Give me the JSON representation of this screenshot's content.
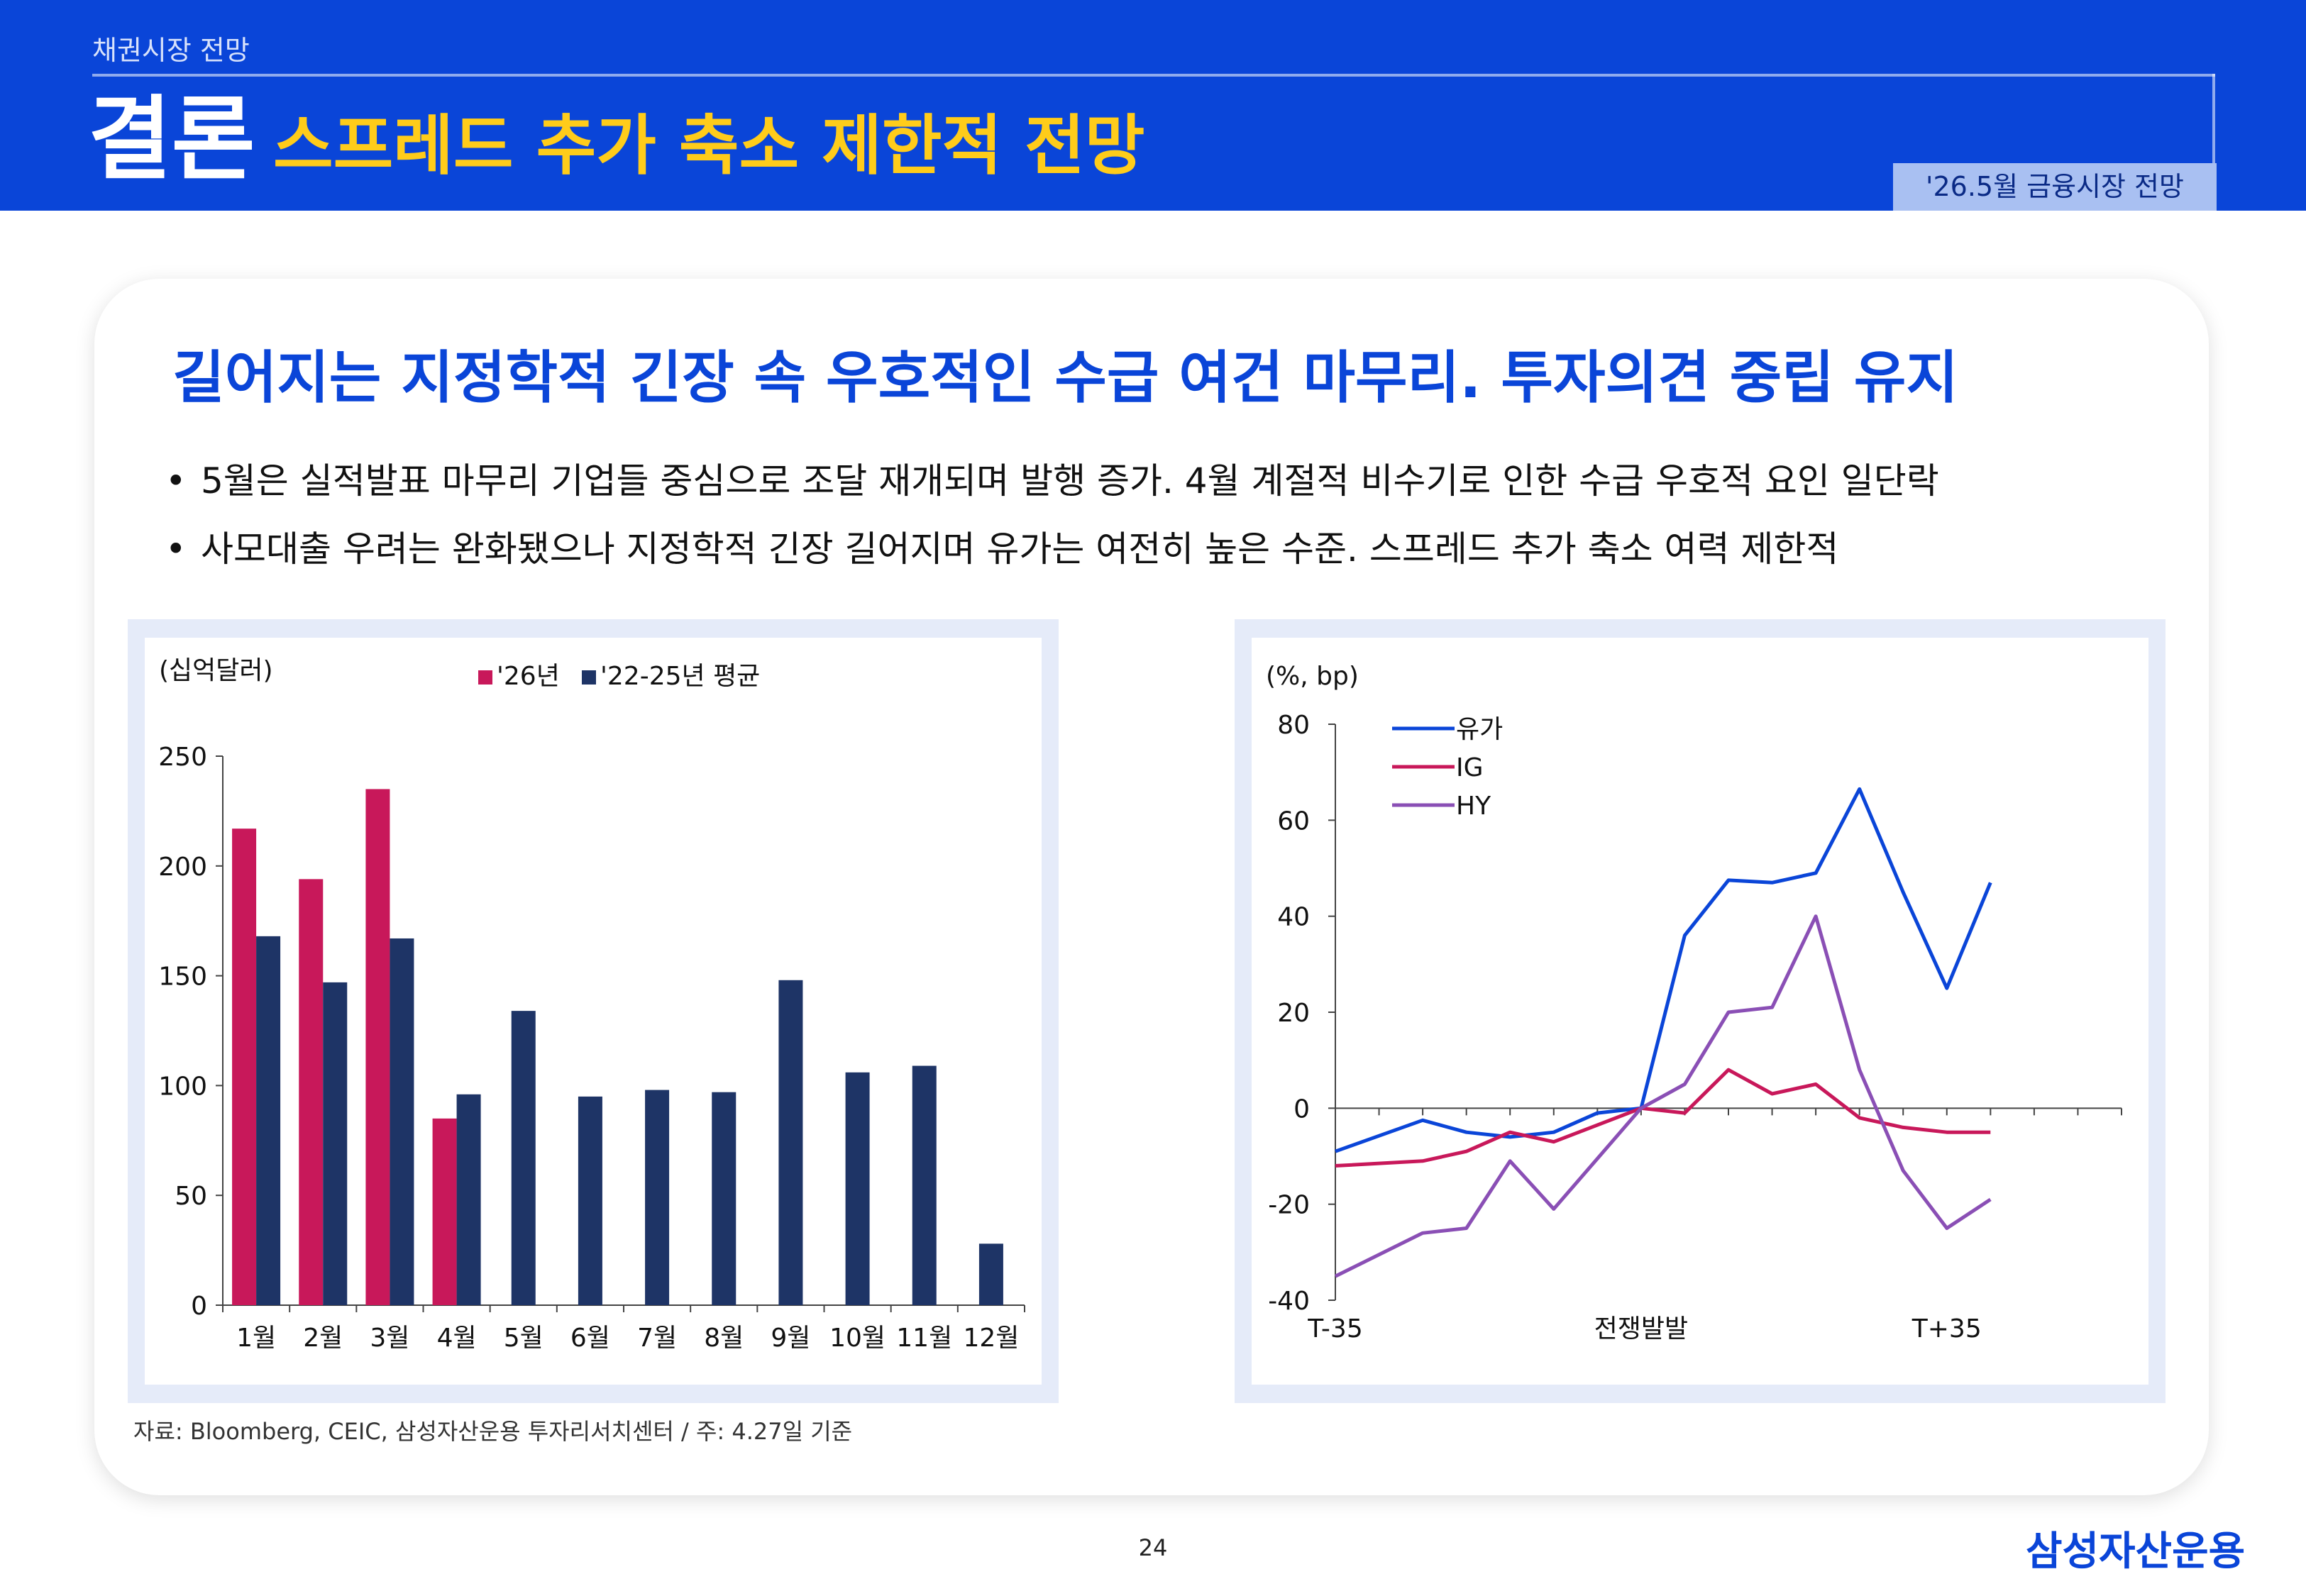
{
  "header": {
    "section": "채권시장 전망",
    "title_main": "결론",
    "title_sub": "스프레드 추가 축소 제한적 전망",
    "badge": "'26.5월 금융시장 전망"
  },
  "card": {
    "headline": "길어지는 지정학적 긴장 속 우호적인 수급 여건 마무리. 투자의견 중립 유지",
    "bullets": [
      "5월은 실적발표 마무리 기업들 중심으로 조달 재개되며 발행 증가. 4월 계절적 비수기로 인한 수급 우호적 요인 일단락",
      "사모대출 우려는 완화됐으나 지정학적 긴장 길어지며 유가는 여전히 높은 수준. 스프레드 추가 축소 여력 제한적"
    ],
    "bullet_symbol": "•",
    "source": "자료: Bloomberg, CEIC, 삼성자산운용 투자리서치센터 / 주: 4.27일 기준"
  },
  "chart_data": [
    {
      "type": "bar",
      "unit_label": "(십억달러)",
      "categories": [
        "1월",
        "2월",
        "3월",
        "4월",
        "5월",
        "6월",
        "7월",
        "8월",
        "9월",
        "10월",
        "11월",
        "12월"
      ],
      "series": [
        {
          "name": "'26년",
          "color": "#c8185a",
          "values": [
            217,
            194,
            235,
            85,
            null,
            null,
            null,
            null,
            null,
            null,
            null,
            null
          ]
        },
        {
          "name": "'22-25년 평균",
          "color": "#1e3466",
          "values": [
            168,
            147,
            167,
            96,
            134,
            95,
            98,
            97,
            148,
            106,
            109,
            28
          ]
        }
      ],
      "ylim": [
        0,
        250
      ],
      "yticks": [
        0,
        50,
        100,
        150,
        200,
        250
      ],
      "legend": "top",
      "grid": false
    },
    {
      "type": "line",
      "unit_label": "(%, bp)",
      "x": [
        -35,
        -30,
        -25,
        -20,
        -15,
        -10,
        -5,
        0,
        5,
        10,
        15,
        20,
        25,
        30,
        35,
        40,
        45,
        50,
        55
      ],
      "x_tick_labels": [
        {
          "x": -35,
          "label": "T-35"
        },
        {
          "x": 0,
          "label": "전쟁발발"
        },
        {
          "x": 35,
          "label": "T+35"
        }
      ],
      "series": [
        {
          "name": "유가",
          "color": "#0a45d8",
          "values": [
            -9,
            null,
            -2.5,
            -5,
            -6,
            -5,
            -1,
            0,
            36,
            47.5,
            47,
            49,
            66.5,
            45,
            25,
            47,
            null,
            null,
            null
          ]
        },
        {
          "name": "IG",
          "color": "#c8185a",
          "values": [
            -12,
            null,
            -11,
            -9,
            -5,
            -7,
            null,
            0,
            -1,
            8,
            3,
            5,
            -2,
            -4,
            -5,
            -5,
            null,
            null,
            null
          ]
        },
        {
          "name": "HY",
          "color": "#8a4fb5",
          "values": [
            -35,
            null,
            -26,
            -25,
            -11,
            -21,
            null,
            0,
            5,
            20,
            21,
            40,
            8,
            -13,
            -25,
            -19,
            null,
            null,
            null
          ]
        }
      ],
      "ylim": [
        -40,
        80
      ],
      "yticks": [
        -40,
        -20,
        0,
        20,
        40,
        60,
        80
      ],
      "legend": "top-left",
      "grid": false
    }
  ],
  "footer": {
    "page_number": "24",
    "logo_text": "삼성자산운용"
  }
}
